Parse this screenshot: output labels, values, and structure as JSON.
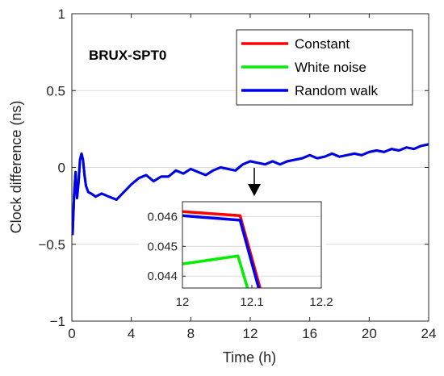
{
  "chart_data": {
    "type": "line",
    "xlabel": "Time (h)",
    "ylabel": "Clock difference (ns)",
    "xlim": [
      0,
      24
    ],
    "ylim": [
      -1,
      1
    ],
    "xticks": [
      0,
      4,
      8,
      12,
      16,
      20,
      24
    ],
    "yticks": [
      -1,
      -0.5,
      0,
      0.5,
      1
    ],
    "ytick_labels": [
      "−1",
      "−0.5",
      "0",
      "0.5",
      "1"
    ],
    "grid": true,
    "legend_position": "top-right",
    "annotation": "BRUX-SPT0",
    "series": [
      {
        "name": "Constant",
        "color": "#ff0000",
        "x": [
          0.05,
          0.15,
          0.25,
          0.35,
          0.45,
          0.55,
          0.65,
          0.75,
          0.85,
          0.95,
          1.1,
          1.3,
          1.6,
          2.0,
          2.5,
          3.0,
          3.5,
          4.0,
          4.5,
          5.0,
          5.5,
          6.0,
          6.5,
          7.0,
          7.5,
          8.0,
          8.5,
          9.0,
          9.5,
          10.0,
          10.5,
          11.0,
          11.5,
          12.0,
          12.5,
          13.0,
          13.5,
          14.0,
          14.5,
          15.0,
          15.5,
          16.0,
          16.5,
          17.0,
          17.5,
          18.0,
          18.5,
          19.0,
          19.5,
          20.0,
          20.5,
          21.0,
          21.5,
          22.0,
          22.5,
          23.0,
          23.5,
          24.0
        ],
        "y": [
          -0.44,
          -0.18,
          -0.03,
          -0.2,
          -0.1,
          0.05,
          0.09,
          0.05,
          -0.05,
          -0.12,
          -0.16,
          -0.17,
          -0.19,
          -0.17,
          -0.19,
          -0.21,
          -0.16,
          -0.11,
          -0.07,
          -0.05,
          -0.09,
          -0.06,
          -0.06,
          -0.02,
          -0.04,
          -0.01,
          -0.03,
          -0.05,
          -0.02,
          0.0,
          -0.01,
          -0.02,
          0.02,
          0.04,
          0.03,
          0.02,
          0.04,
          0.02,
          0.04,
          0.05,
          0.06,
          0.08,
          0.06,
          0.07,
          0.09,
          0.07,
          0.08,
          0.09,
          0.08,
          0.1,
          0.11,
          0.1,
          0.12,
          0.11,
          0.13,
          0.12,
          0.14,
          0.15
        ]
      },
      {
        "name": "White noise",
        "color": "#00ee00",
        "x": [
          0.05,
          0.15,
          0.25,
          0.35,
          0.45,
          0.55,
          0.65,
          0.75,
          0.85,
          0.95,
          1.1,
          1.3,
          1.6,
          2.0,
          2.5,
          3.0,
          3.5,
          4.0,
          4.5,
          5.0,
          5.5,
          6.0,
          6.5,
          7.0,
          7.5,
          8.0,
          8.5,
          9.0,
          9.5,
          10.0,
          10.5,
          11.0,
          11.5,
          12.0,
          12.5,
          13.0,
          13.5,
          14.0,
          14.5,
          15.0,
          15.5,
          16.0,
          16.5,
          17.0,
          17.5,
          18.0,
          18.5,
          19.0,
          19.5,
          20.0,
          20.5,
          21.0,
          21.5,
          22.0,
          22.5,
          23.0,
          23.5,
          24.0
        ],
        "y": [
          -0.44,
          -0.18,
          -0.03,
          -0.2,
          -0.1,
          0.05,
          0.09,
          0.05,
          -0.05,
          -0.12,
          -0.16,
          -0.17,
          -0.19,
          -0.17,
          -0.19,
          -0.21,
          -0.16,
          -0.11,
          -0.07,
          -0.05,
          -0.09,
          -0.06,
          -0.06,
          -0.02,
          -0.04,
          -0.01,
          -0.03,
          -0.05,
          -0.02,
          0.0,
          -0.01,
          -0.02,
          0.02,
          0.04,
          0.03,
          0.02,
          0.04,
          0.02,
          0.04,
          0.05,
          0.06,
          0.08,
          0.06,
          0.07,
          0.09,
          0.07,
          0.08,
          0.09,
          0.08,
          0.1,
          0.11,
          0.1,
          0.12,
          0.11,
          0.13,
          0.12,
          0.14,
          0.15
        ]
      },
      {
        "name": "Random walk",
        "color": "#0000ee",
        "x": [
          0.05,
          0.15,
          0.25,
          0.35,
          0.45,
          0.55,
          0.65,
          0.75,
          0.85,
          0.95,
          1.1,
          1.3,
          1.6,
          2.0,
          2.5,
          3.0,
          3.5,
          4.0,
          4.5,
          5.0,
          5.5,
          6.0,
          6.5,
          7.0,
          7.5,
          8.0,
          8.5,
          9.0,
          9.5,
          10.0,
          10.5,
          11.0,
          11.5,
          12.0,
          12.5,
          13.0,
          13.5,
          14.0,
          14.5,
          15.0,
          15.5,
          16.0,
          16.5,
          17.0,
          17.5,
          18.0,
          18.5,
          19.0,
          19.5,
          20.0,
          20.5,
          21.0,
          21.5,
          22.0,
          22.5,
          23.0,
          23.5,
          24.0
        ],
        "y": [
          -0.44,
          -0.18,
          -0.03,
          -0.2,
          -0.1,
          0.05,
          0.09,
          0.05,
          -0.05,
          -0.12,
          -0.16,
          -0.17,
          -0.19,
          -0.17,
          -0.19,
          -0.21,
          -0.16,
          -0.11,
          -0.07,
          -0.05,
          -0.09,
          -0.06,
          -0.06,
          -0.02,
          -0.04,
          -0.01,
          -0.03,
          -0.05,
          -0.02,
          0.0,
          -0.01,
          -0.02,
          0.02,
          0.04,
          0.03,
          0.02,
          0.04,
          0.02,
          0.04,
          0.05,
          0.06,
          0.08,
          0.06,
          0.07,
          0.09,
          0.07,
          0.08,
          0.09,
          0.08,
          0.1,
          0.11,
          0.1,
          0.12,
          0.11,
          0.13,
          0.12,
          0.14,
          0.15
        ]
      }
    ],
    "inset": {
      "xlim": [
        12,
        12.2
      ],
      "ylim": [
        0.0436,
        0.0465
      ],
      "xticks": [
        12,
        12.1,
        12.2
      ],
      "yticks": [
        0.044,
        0.045,
        0.046
      ],
      "series": [
        {
          "name": "Constant",
          "color": "#ff0000",
          "x": [
            12.0,
            12.083,
            12.113
          ],
          "y": [
            0.04617,
            0.04603,
            0.0435
          ]
        },
        {
          "name": "White noise",
          "color": "#00ee00",
          "x": [
            12.0,
            12.08,
            12.095
          ],
          "y": [
            0.04441,
            0.04468,
            0.0435
          ]
        },
        {
          "name": "Random walk",
          "color": "#0000ee",
          "x": [
            12.0,
            12.083,
            12.111
          ],
          "y": [
            0.04603,
            0.04588,
            0.0435
          ]
        }
      ]
    }
  }
}
